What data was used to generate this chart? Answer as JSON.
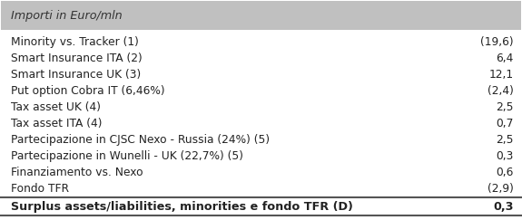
{
  "header": "Importi in Euro/mln",
  "header_bg": "#c0c0c0",
  "header_color": "#333333",
  "rows": [
    {
      "label": "Minority vs. Tracker (1)",
      "value": "(19,6)",
      "bold": false
    },
    {
      "label": "Smart Insurance ITA (2)",
      "value": "6,4",
      "bold": false
    },
    {
      "label": "Smart Insurance UK (3)",
      "value": "12,1",
      "bold": false
    },
    {
      "label": "Put option Cobra IT (6,46%)",
      "value": "(2,4)",
      "bold": false
    },
    {
      "label": "Tax asset UK (4)",
      "value": "2,5",
      "bold": false
    },
    {
      "label": "Tax asset ITA (4)",
      "value": "0,7",
      "bold": false
    },
    {
      "label": "Partecipazione in CJSC Nexo - Russia (24%) (5)",
      "value": "2,5",
      "bold": false
    },
    {
      "label": "Partecipazione in Wunelli - UK (22,7%) (5)",
      "value": "0,3",
      "bold": false
    },
    {
      "label": "Finanziamento vs. Nexo",
      "value": "0,6",
      "bold": false
    },
    {
      "label": "Fondo TFR",
      "value": "(2,9)",
      "bold": false
    }
  ],
  "total_row": {
    "label": "Surplus assets/liabilities, minorities e fondo TFR (D)",
    "value": "0,3",
    "bold": true
  },
  "bg_color": "#ffffff",
  "text_color": "#222222",
  "font_size": 8.8,
  "header_font_size": 9.2,
  "total_font_size": 9.2,
  "line_color": "#555555"
}
